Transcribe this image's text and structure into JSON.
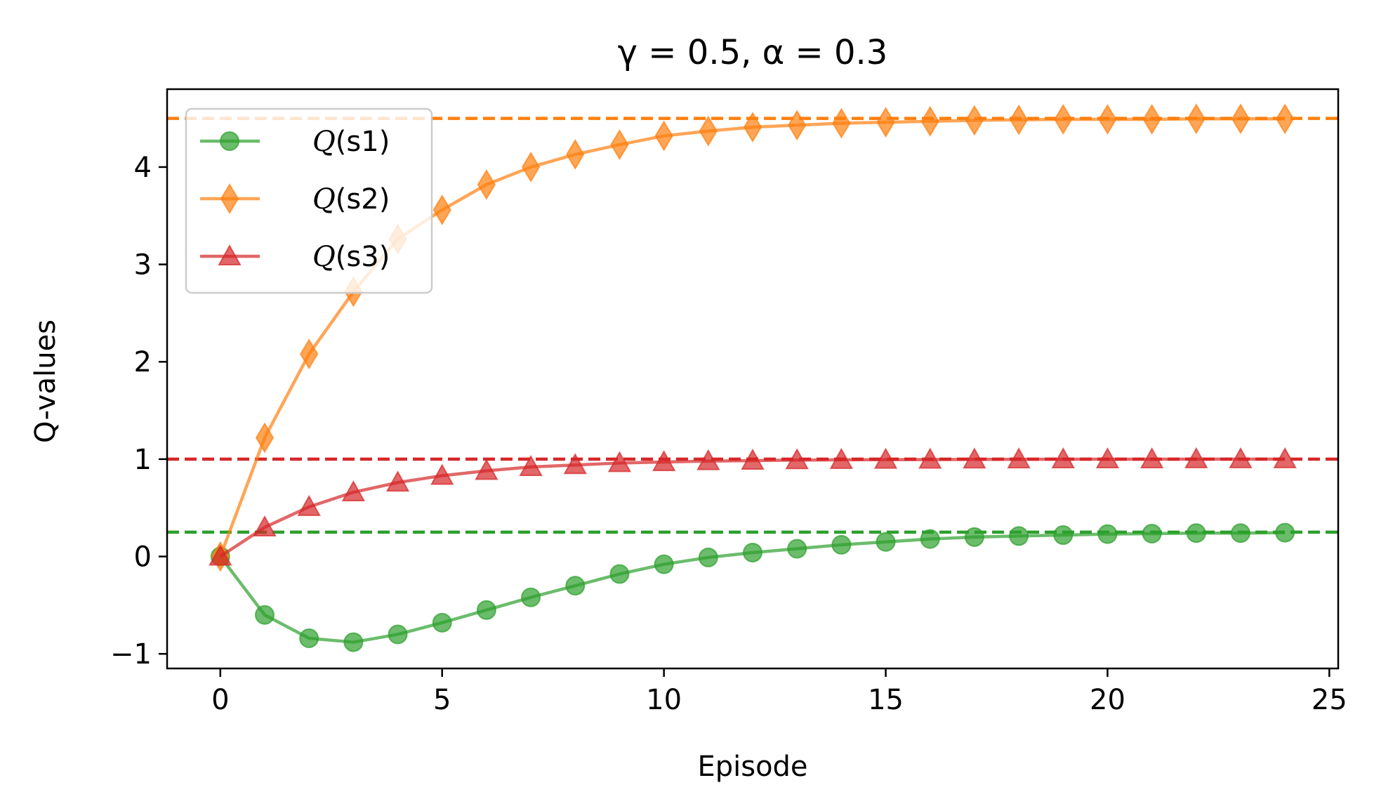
{
  "chart_data": {
    "type": "line",
    "title": "γ = 0.5, α = 0.3",
    "xlabel": "Episode",
    "ylabel": "Q-values",
    "xlim": [
      -1.2,
      25.2
    ],
    "ylim": [
      -1.15,
      4.8
    ],
    "xticks": [
      0,
      5,
      10,
      15,
      20,
      25
    ],
    "xtick_labels": [
      "0",
      "5",
      "10",
      "15",
      "20",
      "25"
    ],
    "yticks": [
      -1,
      0,
      1,
      2,
      3,
      4
    ],
    "ytick_labels": [
      "−1",
      "0",
      "1",
      "2",
      "3",
      "4"
    ],
    "grid": false,
    "legend_position": "top-left",
    "x": [
      0,
      1,
      2,
      3,
      4,
      5,
      6,
      7,
      8,
      9,
      10,
      11,
      12,
      13,
      14,
      15,
      16,
      17,
      18,
      19,
      20,
      21,
      22,
      23,
      24
    ],
    "series": [
      {
        "name": "Q(s1)",
        "legend_italic": "Q",
        "legend_rest": "(s1)",
        "color": "#2ca02c",
        "marker": "circle",
        "values": [
          0.0,
          -0.6,
          -0.84,
          -0.88,
          -0.8,
          -0.68,
          -0.55,
          -0.42,
          -0.3,
          -0.18,
          -0.08,
          -0.01,
          0.04,
          0.08,
          0.12,
          0.15,
          0.18,
          0.2,
          0.21,
          0.22,
          0.23,
          0.235,
          0.24,
          0.24,
          0.245
        ],
        "reference": 0.25
      },
      {
        "name": "Q(s2)",
        "legend_italic": "Q",
        "legend_rest": "(s2)",
        "color": "#ff7f0e",
        "marker": "diamond",
        "values": [
          0.0,
          1.22,
          2.08,
          2.72,
          3.26,
          3.56,
          3.82,
          4.0,
          4.13,
          4.23,
          4.32,
          4.37,
          4.41,
          4.43,
          4.45,
          4.46,
          4.47,
          4.48,
          4.485,
          4.49,
          4.49,
          4.49,
          4.495,
          4.495,
          4.495
        ],
        "reference": 4.5
      },
      {
        "name": "Q(s3)",
        "legend_italic": "Q",
        "legend_rest": "(s3)",
        "color": "#d62728",
        "marker": "triangle",
        "values": [
          0.0,
          0.3,
          0.51,
          0.66,
          0.76,
          0.83,
          0.88,
          0.92,
          0.94,
          0.96,
          0.97,
          0.98,
          0.985,
          0.99,
          0.993,
          0.995,
          0.996,
          0.997,
          0.998,
          0.999,
          0.999,
          0.999,
          1.0,
          1.0,
          1.0
        ],
        "reference": 1.0
      }
    ]
  }
}
